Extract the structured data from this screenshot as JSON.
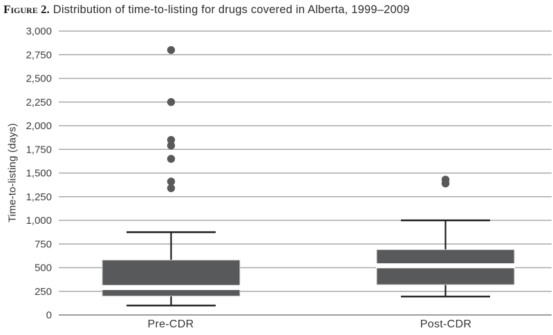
{
  "figure": {
    "label": "Figure 2.",
    "title": "Distribution of time-to-listing for drugs covered in Alberta, 1999–2009"
  },
  "chart_data": {
    "type": "boxplot",
    "title": "Distribution of time-to-listing for drugs covered in Alberta, 1999–2009",
    "ylabel": "Time-to-listing (days)",
    "xlabel": "",
    "ylim": [
      0,
      3000
    ],
    "ytick_step": 250,
    "ytick_labels": [
      "0",
      "250",
      "500",
      "750",
      "1,000",
      "1,250",
      "1,500",
      "1,750",
      "2,000",
      "2,250",
      "2,500",
      "2,750",
      "3,000"
    ],
    "grid": "horizontal",
    "legend": false,
    "categories": [
      "Pre-CDR",
      "Post-CDR"
    ],
    "series": [
      {
        "name": "Pre-CDR",
        "whisker_low": 100,
        "q1": 200,
        "median": 290,
        "q3": 580,
        "whisker_high": 875,
        "outliers": [
          1340,
          1410,
          1650,
          1790,
          1850,
          2250,
          2800
        ]
      },
      {
        "name": "Post-CDR",
        "whisker_low": 195,
        "q1": 320,
        "median": 520,
        "q3": 690,
        "whisker_high": 1000,
        "outliers": [
          1390,
          1430
        ]
      }
    ],
    "colors": {
      "box_fill": "#58595b",
      "box_border": "#cfcfcf",
      "median_gap": "#ffffff",
      "whisker": "#1a1a1a",
      "gridline": "#a8a8a8",
      "axis_line": "#8f8f8f",
      "outlier": "#58595b",
      "tick_text": "#404040"
    }
  }
}
